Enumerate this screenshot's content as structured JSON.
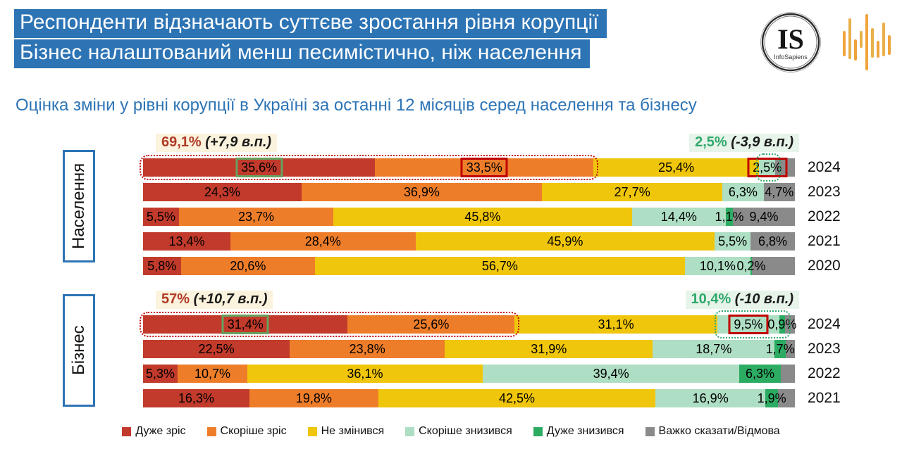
{
  "header": {
    "line1": "Респонденти відзначають суттєве зростання рівня корупції",
    "line2": "Бізнес налаштований менш песимістично, ніж населення"
  },
  "logo": {
    "monogram": "IS",
    "name": "InfoSapiens"
  },
  "subtitle": "Оцінка зміни у рівні корупції в Україні за останні 12 місяців серед населення та бізнесу",
  "colors": {
    "accent_blue": "#2D74B5",
    "palette": {
      "rise_strong": "#C13A2B",
      "rise": "#EE7D2A",
      "same": "#F0C60C",
      "fall": "#AEDEC3",
      "fall_strong": "#2BAC62",
      "unknown": "#8A8A8A"
    },
    "annotation": {
      "rise_text": "#B03A26",
      "fall_text": "#2FA86B",
      "rise_bg": "#FBF3DD",
      "fall_bg": "#E7F4EA",
      "box_green": "#67A15F",
      "box_red": "#C00000"
    }
  },
  "chart_data": {
    "type": "bar",
    "variant": "stacked-horizontal",
    "unit": "percent",
    "axis_range": [
      0,
      100
    ],
    "legend": [
      {
        "key": "rise_strong",
        "label": "Дуже зріс"
      },
      {
        "key": "rise",
        "label": "Скоріше зріс"
      },
      {
        "key": "same",
        "label": "Не змінився"
      },
      {
        "key": "fall",
        "label": "Скоріше знизився"
      },
      {
        "key": "fall_strong",
        "label": "Дуже знизився"
      },
      {
        "key": "unknown",
        "label": "Важко сказати/Відмова"
      }
    ],
    "groups": [
      {
        "id": "naselennia",
        "name": "Населення",
        "annotations": {
          "rise": {
            "value": "69,1%",
            "delta": "(+7,9 в.п.)"
          },
          "fall": {
            "value": "2,5%",
            "delta": "(-3,9 в.п.)"
          }
        },
        "rows": [
          {
            "year": "2024",
            "segments": [
              {
                "key": "rise_strong",
                "value": 35.6,
                "label": "35,6%",
                "box": "green"
              },
              {
                "key": "rise",
                "value": 33.5,
                "label": "33,5%",
                "box": "red"
              },
              {
                "key": "same",
                "value": 25.4,
                "label": "25,4%"
              },
              {
                "key": "fall",
                "value": 2.5,
                "label": "2,5%",
                "box": "red"
              },
              {
                "key": "unknown",
                "value": 3.0,
                "label": ""
              }
            ],
            "outline_rise": [
              0,
              1
            ],
            "outline_fall": [
              3,
              3
            ]
          },
          {
            "year": "2023",
            "segments": [
              {
                "key": "rise_strong",
                "value": 24.3,
                "label": "24,3%"
              },
              {
                "key": "rise",
                "value": 36.9,
                "label": "36,9%"
              },
              {
                "key": "same",
                "value": 27.7,
                "label": "27,7%"
              },
              {
                "key": "fall",
                "value": 6.3,
                "label": "6,3%"
              },
              {
                "key": "unknown",
                "value": 4.7,
                "label": "4,7%"
              }
            ]
          },
          {
            "year": "2022",
            "segments": [
              {
                "key": "rise_strong",
                "value": 5.5,
                "label": "5,5%"
              },
              {
                "key": "rise",
                "value": 23.7,
                "label": "23,7%"
              },
              {
                "key": "same",
                "value": 45.8,
                "label": "45,8%"
              },
              {
                "key": "fall",
                "value": 14.4,
                "label": "14,4%"
              },
              {
                "key": "fall_strong",
                "value": 1.1,
                "label": "1,1%"
              },
              {
                "key": "unknown",
                "value": 9.4,
                "label": "9,4%"
              }
            ]
          },
          {
            "year": "2021",
            "segments": [
              {
                "key": "rise_strong",
                "value": 13.4,
                "label": "13,4%"
              },
              {
                "key": "rise",
                "value": 28.4,
                "label": "28,4%"
              },
              {
                "key": "same",
                "value": 45.9,
                "label": "45,9%"
              },
              {
                "key": "fall",
                "value": 5.5,
                "label": "5,5%"
              },
              {
                "key": "unknown",
                "value": 6.8,
                "label": "6,8%"
              }
            ]
          },
          {
            "year": "2020",
            "segments": [
              {
                "key": "rise_strong",
                "value": 5.8,
                "label": "5,8%"
              },
              {
                "key": "rise",
                "value": 20.6,
                "label": "20,6%"
              },
              {
                "key": "same",
                "value": 56.7,
                "label": "56,7%"
              },
              {
                "key": "fall",
                "value": 10.1,
                "label": "10,1%"
              },
              {
                "key": "fall_strong",
                "value": 0.2,
                "label": "0,2%"
              },
              {
                "key": "unknown",
                "value": 6.6,
                "label": ""
              }
            ]
          }
        ]
      },
      {
        "id": "biznes",
        "name": "Бізнес",
        "annotations": {
          "rise": {
            "value": "57%",
            "delta": "(+10,7 в.п.)"
          },
          "fall": {
            "value": "10,4%",
            "delta": "(-10 в.п.)"
          }
        },
        "rows": [
          {
            "year": "2024",
            "segments": [
              {
                "key": "rise_strong",
                "value": 31.4,
                "label": "31,4%",
                "box": "green"
              },
              {
                "key": "rise",
                "value": 25.6,
                "label": "25,6%"
              },
              {
                "key": "same",
                "value": 31.1,
                "label": "31,1%"
              },
              {
                "key": "fall",
                "value": 9.5,
                "label": "9,5%",
                "box": "red"
              },
              {
                "key": "fall_strong",
                "value": 0.9,
                "label": "0,9%"
              },
              {
                "key": "unknown",
                "value": 1.5,
                "label": ""
              }
            ],
            "outline_rise": [
              0,
              1
            ],
            "outline_fall": [
              3,
              4
            ]
          },
          {
            "year": "2023",
            "segments": [
              {
                "key": "rise_strong",
                "value": 22.5,
                "label": "22,5%"
              },
              {
                "key": "rise",
                "value": 23.8,
                "label": "23,8%"
              },
              {
                "key": "same",
                "value": 31.9,
                "label": "31,9%"
              },
              {
                "key": "fall",
                "value": 18.7,
                "label": "18,7%"
              },
              {
                "key": "fall_strong",
                "value": 1.7,
                "label": "1,7%"
              },
              {
                "key": "unknown",
                "value": 1.4,
                "label": ""
              }
            ]
          },
          {
            "year": "2022",
            "segments": [
              {
                "key": "rise_strong",
                "value": 5.3,
                "label": "5,3%"
              },
              {
                "key": "rise",
                "value": 10.7,
                "label": "10,7%"
              },
              {
                "key": "same",
                "value": 36.1,
                "label": "36,1%"
              },
              {
                "key": "fall",
                "value": 39.4,
                "label": "39,4%"
              },
              {
                "key": "fall_strong",
                "value": 6.3,
                "label": "6,3%"
              },
              {
                "key": "unknown",
                "value": 2.2,
                "label": ""
              }
            ]
          },
          {
            "year": "2021",
            "segments": [
              {
                "key": "rise_strong",
                "value": 16.3,
                "label": "16,3%"
              },
              {
                "key": "rise",
                "value": 19.8,
                "label": "19,8%"
              },
              {
                "key": "same",
                "value": 42.5,
                "label": "42,5%"
              },
              {
                "key": "fall",
                "value": 16.9,
                "label": "16,9%"
              },
              {
                "key": "fall_strong",
                "value": 1.9,
                "label": "1,9%"
              },
              {
                "key": "unknown",
                "value": 2.6,
                "label": ""
              }
            ]
          }
        ]
      }
    ]
  }
}
